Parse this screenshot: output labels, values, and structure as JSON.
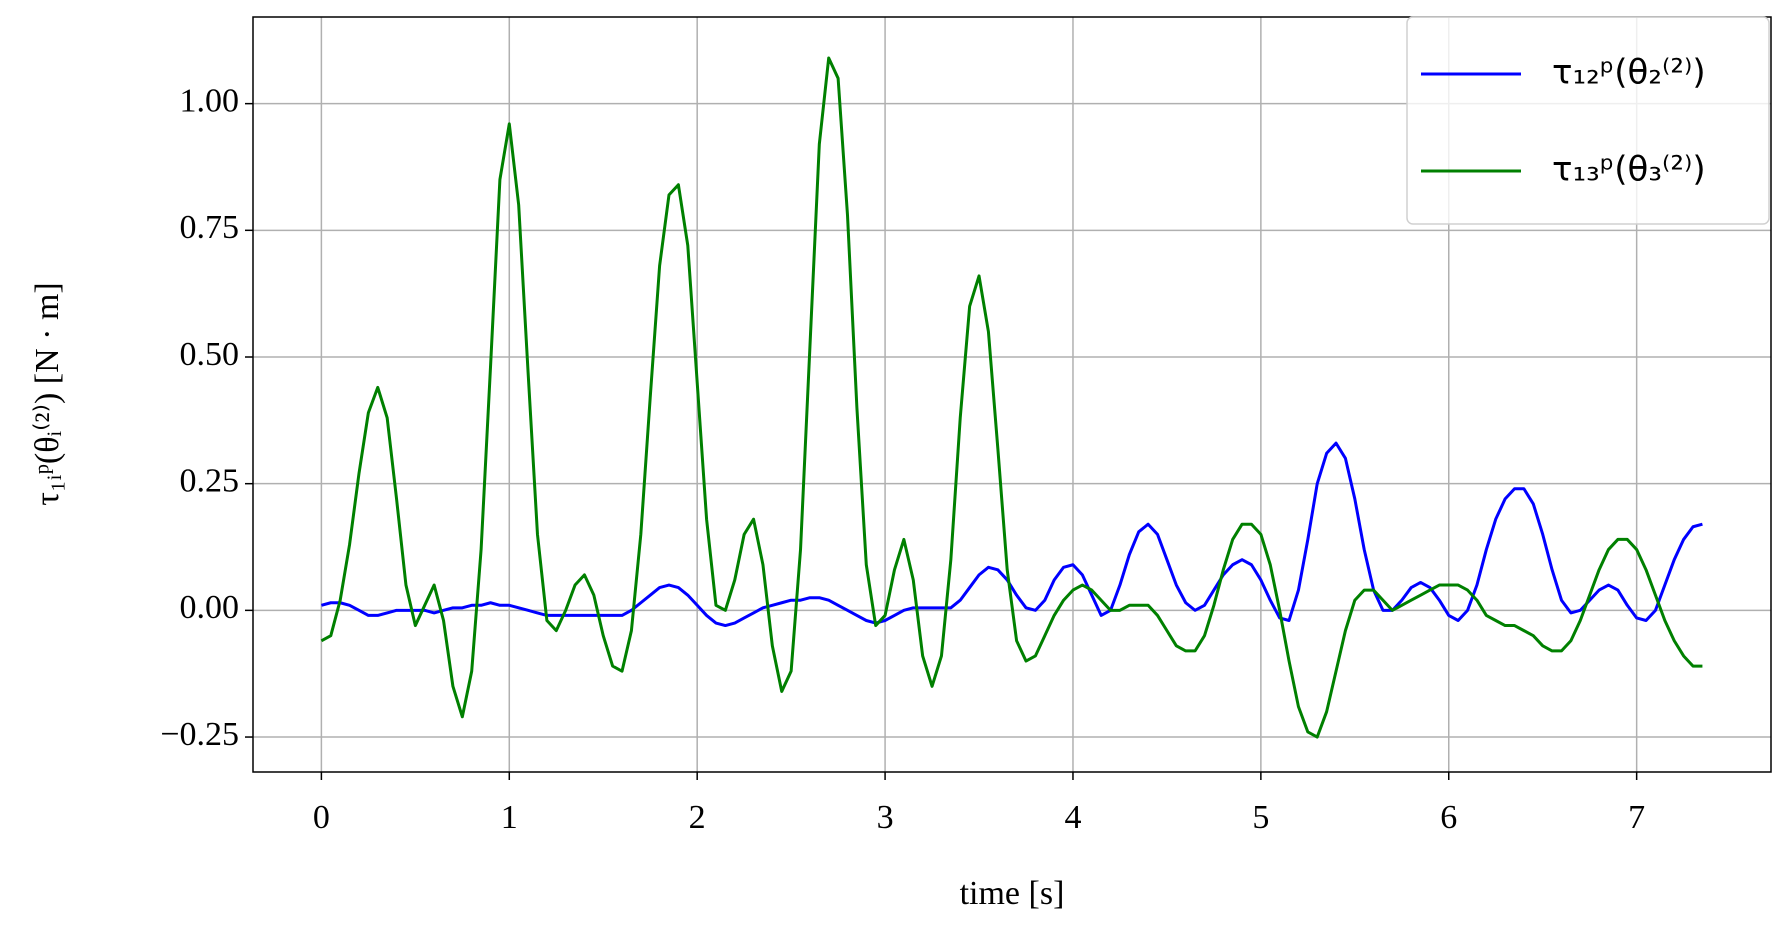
{
  "chart_data": {
    "type": "line",
    "xlabel": "time [s]",
    "ylabel": "τ₁ᵢᵖ(θᵢ⁽²⁾) [N · m]",
    "x": [
      0,
      0.05,
      0.1,
      0.15,
      0.2,
      0.25,
      0.3,
      0.35,
      0.4,
      0.45,
      0.5,
      0.55,
      0.6,
      0.65,
      0.7,
      0.75,
      0.8,
      0.85,
      0.9,
      0.95,
      1,
      1.05,
      1.1,
      1.15,
      1.2,
      1.25,
      1.3,
      1.35,
      1.4,
      1.45,
      1.5,
      1.55,
      1.6,
      1.65,
      1.7,
      1.75,
      1.8,
      1.85,
      1.9,
      1.95,
      2,
      2.05,
      2.1,
      2.15,
      2.2,
      2.25,
      2.3,
      2.35,
      2.4,
      2.45,
      2.5,
      2.55,
      2.6,
      2.65,
      2.7,
      2.75,
      2.8,
      2.85,
      2.9,
      2.95,
      3,
      3.05,
      3.1,
      3.15,
      3.2,
      3.25,
      3.3,
      3.35,
      3.4,
      3.45,
      3.5,
      3.55,
      3.6,
      3.65,
      3.7,
      3.75,
      3.8,
      3.85,
      3.9,
      3.95,
      4,
      4.05,
      4.1,
      4.15,
      4.2,
      4.25,
      4.3,
      4.35,
      4.4,
      4.45,
      4.5,
      4.55,
      4.6,
      4.65,
      4.7,
      4.75,
      4.8,
      4.85,
      4.9,
      4.95,
      5,
      5.05,
      5.1,
      5.15,
      5.2,
      5.25,
      5.3,
      5.35,
      5.4,
      5.45,
      5.5,
      5.55,
      5.6,
      5.65,
      5.7,
      5.75,
      5.8,
      5.85,
      5.9,
      5.95,
      6,
      6.05,
      6.1,
      6.15,
      6.2,
      6.25,
      6.3,
      6.35,
      6.4,
      6.45,
      6.5,
      6.55,
      6.6,
      6.65,
      6.7,
      6.75,
      6.8,
      6.85,
      6.9,
      6.95,
      7,
      7.05,
      7.1,
      7.15,
      7.2,
      7.25,
      7.3,
      7.35
    ],
    "series": [
      {
        "name": "τ₁₂ᵖ(θ₂⁽²⁾)",
        "color": "#0000ff",
        "values": [
          0.01,
          0.015,
          0.015,
          0.01,
          0,
          -0.01,
          -0.01,
          -0.005,
          0,
          0,
          0,
          0,
          -0.005,
          0,
          0.005,
          0.005,
          0.01,
          0.01,
          0.015,
          0.01,
          0.01,
          0.005,
          0,
          -0.005,
          -0.01,
          -0.01,
          -0.01,
          -0.01,
          -0.01,
          -0.01,
          -0.01,
          -0.01,
          -0.01,
          0,
          0.015,
          0.03,
          0.045,
          0.05,
          0.045,
          0.03,
          0.01,
          -0.01,
          -0.025,
          -0.03,
          -0.025,
          -0.015,
          -0.005,
          0.005,
          0.01,
          0.015,
          0.02,
          0.02,
          0.025,
          0.025,
          0.02,
          0.01,
          0,
          -0.01,
          -0.02,
          -0.025,
          -0.02,
          -0.01,
          0,
          0.005,
          0.005,
          0.005,
          0.005,
          0.005,
          0.02,
          0.045,
          0.07,
          0.085,
          0.08,
          0.06,
          0.03,
          0.005,
          0,
          0.02,
          0.06,
          0.085,
          0.09,
          0.07,
          0.03,
          -0.01,
          0,
          0.05,
          0.11,
          0.155,
          0.17,
          0.15,
          0.1,
          0.05,
          0.015,
          0,
          0.01,
          0.04,
          0.07,
          0.09,
          0.1,
          0.09,
          0.06,
          0.02,
          -0.015,
          -0.02,
          0.04,
          0.14,
          0.25,
          0.31,
          0.33,
          0.3,
          0.22,
          0.12,
          0.04,
          0,
          0,
          0.02,
          0.045,
          0.055,
          0.045,
          0.02,
          -0.01,
          -0.02,
          0,
          0.05,
          0.12,
          0.18,
          0.22,
          0.24,
          0.24,
          0.21,
          0.15,
          0.08,
          0.02,
          -0.005,
          0,
          0.02,
          0.04,
          0.05,
          0.04,
          0.01,
          -0.015,
          -0.02,
          0,
          0.05,
          0.1,
          0.14,
          0.165,
          0.17
        ]
      },
      {
        "name": "τ₁₃ᵖ(θ₃⁽²⁾)",
        "color": "#008000",
        "values": [
          -0.06,
          -0.05,
          0.02,
          0.13,
          0.27,
          0.39,
          0.44,
          0.38,
          0.22,
          0.05,
          -0.03,
          0.01,
          0.05,
          -0.02,
          -0.15,
          -0.21,
          -0.12,
          0.12,
          0.48,
          0.85,
          0.96,
          0.8,
          0.47,
          0.15,
          -0.02,
          -0.04,
          0,
          0.05,
          0.07,
          0.03,
          -0.05,
          -0.11,
          -0.12,
          -0.04,
          0.15,
          0.42,
          0.68,
          0.82,
          0.84,
          0.72,
          0.45,
          0.18,
          0.01,
          0,
          0.06,
          0.15,
          0.18,
          0.09,
          -0.07,
          -0.16,
          -0.12,
          0.12,
          0.52,
          0.92,
          1.09,
          1.05,
          0.78,
          0.4,
          0.09,
          -0.03,
          -0.01,
          0.08,
          0.14,
          0.06,
          -0.09,
          -0.15,
          -0.09,
          0.1,
          0.38,
          0.6,
          0.66,
          0.55,
          0.32,
          0.08,
          -0.06,
          -0.1,
          -0.09,
          -0.05,
          -0.01,
          0.02,
          0.04,
          0.05,
          0.04,
          0.02,
          0,
          0,
          0.01,
          0.01,
          0.01,
          -0.01,
          -0.04,
          -0.07,
          -0.08,
          -0.08,
          -0.05,
          0.01,
          0.08,
          0.14,
          0.17,
          0.17,
          0.15,
          0.09,
          0,
          -0.1,
          -0.19,
          -0.24,
          -0.25,
          -0.2,
          -0.12,
          -0.04,
          0.02,
          0.04,
          0.04,
          0.02,
          0,
          0.01,
          0.02,
          0.03,
          0.04,
          0.05,
          0.05,
          0.05,
          0.04,
          0.02,
          -0.01,
          -0.02,
          -0.03,
          -0.03,
          -0.04,
          -0.05,
          -0.07,
          -0.08,
          -0.08,
          -0.06,
          -0.02,
          0.03,
          0.08,
          0.12,
          0.14,
          0.14,
          0.12,
          0.08,
          0.03,
          -0.02,
          -0.06,
          -0.09,
          -0.11,
          -0.11
        ]
      }
    ],
    "xlim": [
      -0.364,
      7.715
    ],
    "ylim": [
      -0.319,
      1.171
    ],
    "xticks": [
      0,
      1,
      2,
      3,
      4,
      5,
      6,
      7
    ],
    "yticks": [
      {
        "value": -0.25,
        "label": "−0.25"
      },
      {
        "value": 0,
        "label": "0.00"
      },
      {
        "value": 0.25,
        "label": "0.25"
      },
      {
        "value": 0.5,
        "label": "0.50"
      },
      {
        "value": 0.75,
        "label": "0.75"
      },
      {
        "value": 1,
        "label": "1.00"
      }
    ],
    "grid": true,
    "legend": "upper right"
  }
}
